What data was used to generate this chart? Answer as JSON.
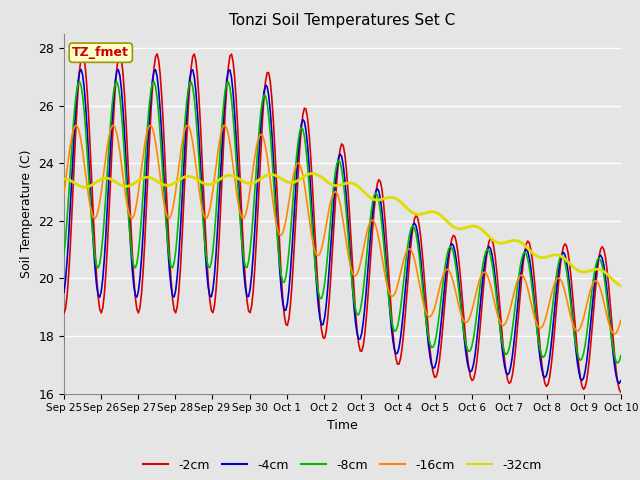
{
  "title": "Tonzi Soil Temperatures Set C",
  "xlabel": "Time",
  "ylabel": "Soil Temperature (C)",
  "ylim": [
    16,
    28.5
  ],
  "background_color": "#e5e5e5",
  "grid_color": "white",
  "annotation_text": "TZ_fmet",
  "annotation_bg": "#ffffcc",
  "annotation_edge": "#999900",
  "annotation_color": "#cc0000",
  "series": {
    "-2cm": {
      "color": "#dd0000",
      "lw": 1.2
    },
    "-4cm": {
      "color": "#0000cc",
      "lw": 1.2
    },
    "-8cm": {
      "color": "#00bb00",
      "lw": 1.2
    },
    "-16cm": {
      "color": "#ff8800",
      "lw": 1.2
    },
    "-32cm": {
      "color": "#dddd00",
      "lw": 2.0
    }
  },
  "xtick_labels": [
    "Sep 25",
    "Sep 26",
    "Sep 27",
    "Sep 28",
    "Sep 29",
    "Sep 30",
    "Oct 1",
    "Oct 2",
    "Oct 3",
    "Oct 4",
    "Oct 5",
    "Oct 6",
    "Oct 7",
    "Oct 8",
    "Oct 9",
    "Oct 10"
  ],
  "ytick_labels": [
    16,
    18,
    20,
    22,
    24,
    26,
    28
  ]
}
